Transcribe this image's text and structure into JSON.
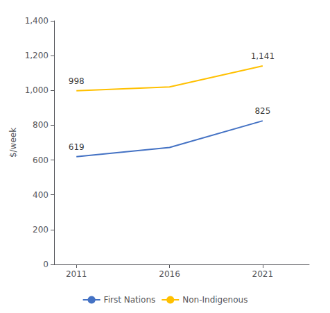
{
  "chart_data": {
    "type": "line",
    "ylabel": "$/week",
    "x": [
      2011,
      2016,
      2021
    ],
    "series": [
      {
        "name": "First Nations",
        "color": "#4472C4",
        "values": [
          619,
          672,
          825
        ],
        "marker": "none",
        "line_style": "solid"
      },
      {
        "name": "Non-Indigenous",
        "color": "#FFC000",
        "values": [
          998,
          1020,
          1141
        ],
        "marker": "none",
        "line_style": "solid"
      }
    ],
    "xlim": [
      2009.8,
      2023.5
    ],
    "xticks": [
      2011,
      2016,
      2021
    ],
    "ylim": [
      0,
      1400
    ],
    "yticks": [
      0,
      200,
      400,
      600,
      800,
      {
        "value": 1000,
        "label": "1,000"
      },
      {
        "value": 1200,
        "label": "1,200"
      },
      {
        "value": 1400,
        "label": "1,400"
      }
    ],
    "grid": false,
    "legend": "bottom",
    "annotations": [
      {
        "text": "619",
        "x": 2011,
        "y": 619
      },
      {
        "text": "825",
        "x": 2021,
        "y": 825
      },
      {
        "text": "998",
        "x": 2011,
        "y": 998
      },
      {
        "text": "1,141",
        "x": 2021,
        "y": 1141
      }
    ]
  }
}
